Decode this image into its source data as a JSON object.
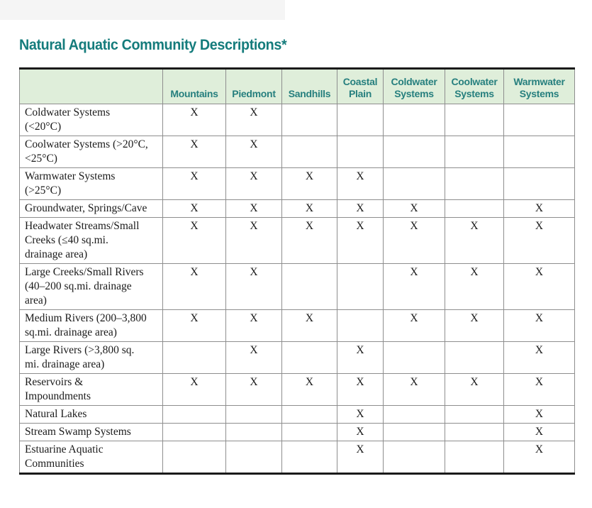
{
  "title": "Natural Aquatic Community Descriptions*",
  "colors": {
    "accent_teal": "#157c7c",
    "header_green": "#dfeeda",
    "grid_line": "#8e8e8e",
    "frame_black": "#1a1a1a"
  },
  "table": {
    "corner_label": "",
    "columns": [
      "Mountains",
      "Piedmont",
      "Sandhills",
      "Coastal Plain",
      "Coldwater Systems",
      "Coolwater Systems",
      "Warmwater Systems"
    ],
    "mark_symbol": "X",
    "rows": [
      {
        "label": "Coldwater Systems (<20°C)",
        "marks": [
          "X",
          "X",
          "",
          "",
          "",
          "",
          ""
        ]
      },
      {
        "label": "Coolwater Systems (>20°C, <25°C)",
        "marks": [
          "X",
          "X",
          "",
          "",
          "",
          "",
          ""
        ]
      },
      {
        "label": "Warmwater Systems (>25°C)",
        "marks": [
          "X",
          "X",
          "X",
          "X",
          "",
          "",
          ""
        ]
      },
      {
        "label": "Groundwater, Springs/Cave",
        "marks": [
          "X",
          "X",
          "X",
          "X",
          "X",
          "",
          "X"
        ]
      },
      {
        "label": "Headwater Streams/Small Creeks (≤40 sq.mi. drainage area)",
        "marks": [
          "X",
          "X",
          "X",
          "X",
          "X",
          "X",
          "X"
        ]
      },
      {
        "label": "Large Creeks/Small Rivers (40–200 sq.mi. drainage area)",
        "marks": [
          "X",
          "X",
          "",
          "",
          "X",
          "X",
          "X"
        ]
      },
      {
        "label": "Medium Rivers (200–3,800 sq.mi. drainage area)",
        "marks": [
          "X",
          "X",
          "X",
          "",
          "X",
          "X",
          "X"
        ]
      },
      {
        "label": "Large Rivers (>3,800 sq. mi. drainage area)",
        "marks": [
          "",
          "X",
          "",
          "X",
          "",
          "",
          "X"
        ]
      },
      {
        "label": "Reservoirs & Impoundments",
        "marks": [
          "X",
          "X",
          "X",
          "X",
          "X",
          "X",
          "X"
        ]
      },
      {
        "label": "Natural Lakes",
        "marks": [
          "",
          "",
          "",
          "X",
          "",
          "",
          "X"
        ]
      },
      {
        "label": "Stream Swamp Systems",
        "marks": [
          "",
          "",
          "",
          "X",
          "",
          "",
          "X"
        ]
      },
      {
        "label": "Estuarine Aquatic Communities",
        "marks": [
          "",
          "",
          "",
          "X",
          "",
          "",
          "X"
        ]
      }
    ]
  }
}
